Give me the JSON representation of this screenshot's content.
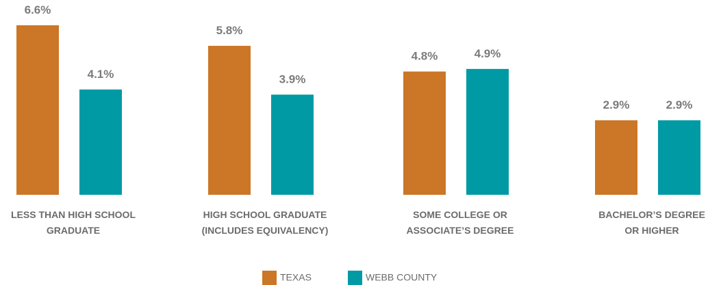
{
  "chart_data": {
    "type": "bar",
    "categories": [
      "LESS THAN HIGH SCHOOL\nGRADUATE",
      "HIGH SCHOOL GRADUATE\n(INCLUDES EQUIVALENCY)",
      "SOME COLLEGE OR\nASSOCIATE’S DEGREE",
      "BACHELOR’S DEGREE\nOR HIGHER"
    ],
    "series": [
      {
        "name": "TEXAS",
        "color": "#cc7627",
        "values": [
          6.6,
          5.8,
          4.8,
          2.9
        ],
        "value_labels": [
          "6.6%",
          "5.8%",
          "4.8%",
          "2.9%"
        ]
      },
      {
        "name": "WEBB COUNTY",
        "color": "#009aa5",
        "values": [
          4.1,
          3.9,
          4.9,
          2.9
        ],
        "value_labels": [
          "4.1%",
          "3.9%",
          "4.9%",
          "2.9%"
        ]
      }
    ]
  }
}
